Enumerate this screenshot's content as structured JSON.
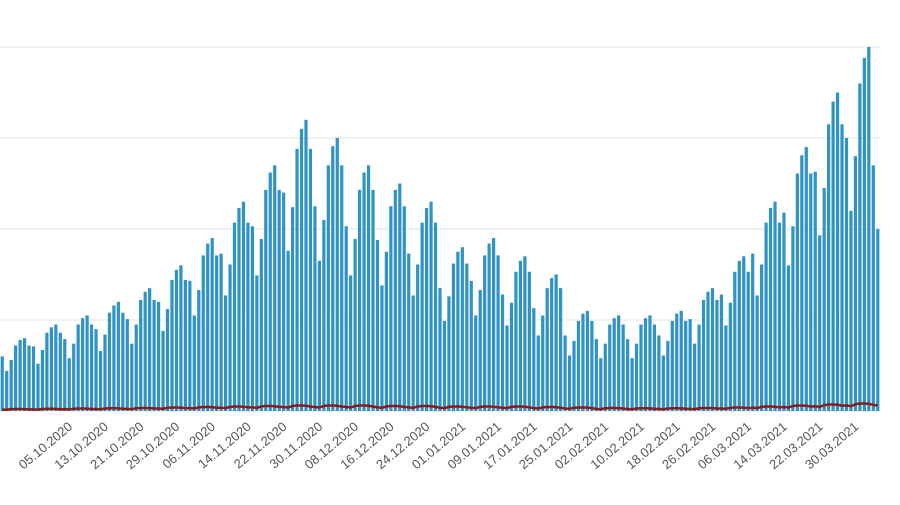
{
  "chart_data": {
    "type": "bar",
    "categories": [
      null,
      null,
      null,
      null,
      null,
      null,
      null,
      null,
      null,
      null,
      null,
      null,
      null,
      null,
      null,
      "05.10.2020",
      null,
      null,
      null,
      null,
      null,
      null,
      null,
      "13.10.2020",
      null,
      null,
      null,
      null,
      null,
      null,
      null,
      "21.10.2020",
      null,
      null,
      null,
      null,
      null,
      null,
      null,
      "29.10.2020",
      null,
      null,
      null,
      null,
      null,
      null,
      null,
      "06.11.2020",
      null,
      null,
      null,
      null,
      null,
      null,
      null,
      "14.11.2020",
      null,
      null,
      null,
      null,
      null,
      null,
      null,
      "22.11.2020",
      null,
      null,
      null,
      null,
      null,
      null,
      null,
      "30.11.2020",
      null,
      null,
      null,
      null,
      null,
      null,
      null,
      "08.12.2020",
      null,
      null,
      null,
      null,
      null,
      null,
      null,
      "16.12.2020",
      null,
      null,
      null,
      null,
      null,
      null,
      null,
      "24.12.2020",
      null,
      null,
      null,
      null,
      null,
      null,
      null,
      "01.01.2021",
      null,
      null,
      null,
      null,
      null,
      null,
      null,
      "09.01.2021",
      null,
      null,
      null,
      null,
      null,
      null,
      null,
      "17.01.2021",
      null,
      null,
      null,
      null,
      null,
      null,
      null,
      "25.01.2021",
      null,
      null,
      null,
      null,
      null,
      null,
      null,
      "02.02.2021",
      null,
      null,
      null,
      null,
      null,
      null,
      null,
      "10.02.2021",
      null,
      null,
      null,
      null,
      null,
      null,
      null,
      "18.02.2021",
      null,
      null,
      null,
      null,
      null,
      null,
      null,
      "26.02.2021",
      null,
      null,
      null,
      null,
      null,
      null,
      null,
      "06.03.2021",
      null,
      null,
      null,
      null,
      null,
      null,
      null,
      "14.03.2021",
      null,
      null,
      null,
      null,
      null,
      null,
      null,
      "22.03.2021",
      null,
      null,
      null,
      null,
      null,
      null,
      null,
      "30.03.2021",
      null,
      null,
      null,
      null,
      null
    ],
    "series": [
      {
        "color": "#2f93c6",
        "values": [
          6000,
          4400,
          5600,
          7200,
          7800,
          8000,
          7200,
          7100,
          5200,
          6700,
          8600,
          9200,
          9500,
          8600,
          7900,
          5800,
          7400,
          9500,
          10200,
          10500,
          9500,
          9000,
          6600,
          8400,
          10800,
          11600,
          12000,
          10800,
          10100,
          7400,
          9500,
          12200,
          13100,
          13500,
          12200,
          12000,
          8800,
          11200,
          14400,
          15500,
          16000,
          14400,
          14300,
          10500,
          13300,
          17100,
          18400,
          19000,
          17100,
          17300,
          12700,
          16100,
          20700,
          22300,
          23000,
          20700,
          20300,
          14900,
          18900,
          24300,
          26200,
          27000,
          24300,
          24000,
          17600,
          22400,
          28800,
          31000,
          32000,
          28800,
          22500,
          16500,
          21000,
          27000,
          29100,
          30000,
          27000,
          20300,
          14900,
          18900,
          24300,
          26200,
          27000,
          24300,
          18800,
          13800,
          17500,
          22500,
          24300,
          25000,
          22500,
          17300,
          12700,
          16100,
          20700,
          22300,
          23000,
          20700,
          13500,
          9900,
          12600,
          16200,
          17500,
          18000,
          16200,
          14300,
          10500,
          13300,
          17100,
          18400,
          19000,
          17100,
          12800,
          9400,
          11900,
          15300,
          16500,
          17000,
          15300,
          11300,
          8300,
          10500,
          13500,
          14600,
          15000,
          13500,
          8300,
          6100,
          7700,
          9900,
          10700,
          11000,
          9900,
          7900,
          5800,
          7400,
          9500,
          10200,
          10500,
          9500,
          7900,
          5800,
          7400,
          9500,
          10200,
          10500,
          9500,
          8300,
          6100,
          7700,
          9900,
          10700,
          11000,
          9900,
          10100,
          7400,
          9500,
          12200,
          13100,
          13500,
          12200,
          12800,
          9400,
          11900,
          15300,
          16500,
          17000,
          15300,
          17300,
          12700,
          16100,
          20700,
          22300,
          23000,
          20700,
          21800,
          16000,
          20300,
          26100,
          28100,
          29000,
          26100,
          26300,
          19300,
          24500,
          31500,
          34000,
          35000,
          31500,
          30000,
          22000,
          28000,
          36000,
          38800,
          40000,
          27000,
          20000
        ]
      },
      {
        "color": "#8b1a1a",
        "values": [
          160,
          140,
          200,
          220,
          220,
          210,
          180,
          176,
          154,
          220,
          242,
          242,
          231,
          198,
          200,
          175,
          250,
          275,
          275,
          263,
          225,
          216,
          189,
          270,
          297,
          297,
          284,
          243,
          240,
          210,
          300,
          330,
          330,
          315,
          270,
          280,
          245,
          350,
          385,
          385,
          368,
          315,
          320,
          280,
          400,
          440,
          440,
          420,
          360,
          360,
          315,
          450,
          495,
          495,
          473,
          405,
          400,
          350,
          500,
          550,
          550,
          525,
          450,
          440,
          385,
          550,
          605,
          605,
          578,
          495,
          440,
          385,
          550,
          605,
          605,
          578,
          495,
          440,
          385,
          550,
          605,
          605,
          578,
          495,
          400,
          350,
          500,
          550,
          550,
          525,
          450,
          400,
          350,
          500,
          550,
          550,
          525,
          450,
          360,
          315,
          450,
          495,
          495,
          473,
          405,
          360,
          315,
          450,
          495,
          495,
          473,
          405,
          360,
          315,
          450,
          495,
          495,
          473,
          405,
          320,
          280,
          400,
          440,
          440,
          420,
          360,
          280,
          245,
          350,
          385,
          385,
          368,
          315,
          240,
          210,
          300,
          330,
          330,
          315,
          270,
          224,
          196,
          280,
          308,
          308,
          294,
          252,
          224,
          196,
          280,
          308,
          308,
          294,
          252,
          240,
          210,
          300,
          330,
          330,
          315,
          270,
          280,
          245,
          350,
          385,
          385,
          368,
          315,
          360,
          315,
          450,
          495,
          495,
          473,
          405,
          440,
          385,
          550,
          605,
          605,
          578,
          495,
          520,
          455,
          650,
          715,
          715,
          683,
          585,
          600,
          525,
          750,
          825,
          825,
          788,
          675,
          600
        ]
      }
    ],
    "ylim": [
      0,
      40000
    ],
    "yticks": [
      0,
      10000,
      20000,
      30000,
      40000
    ],
    "grid": true
  }
}
